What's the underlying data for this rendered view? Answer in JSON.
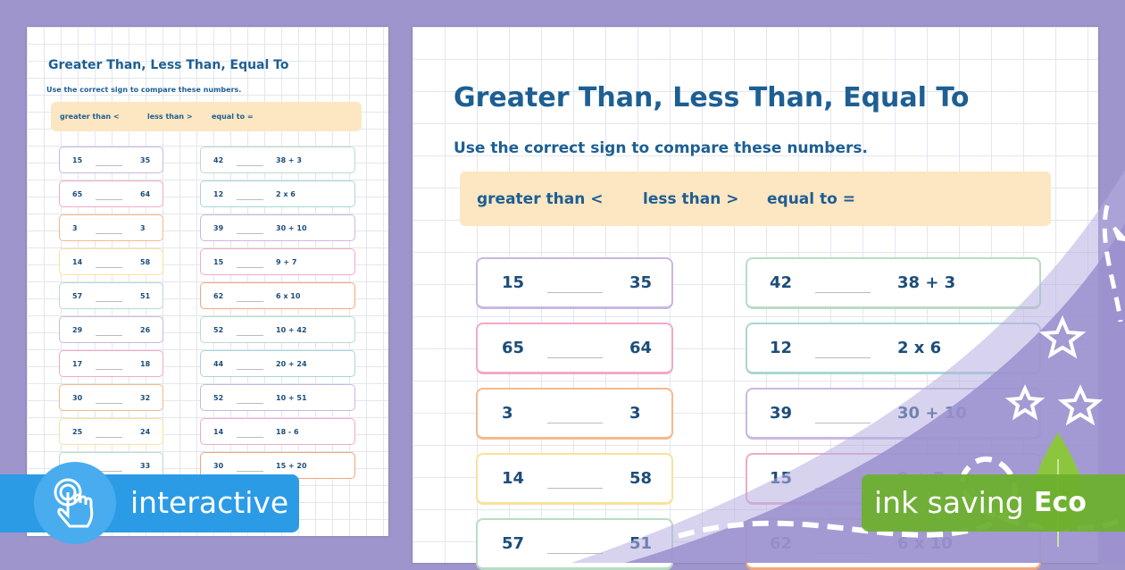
{
  "worksheet": {
    "title": "Greater Than, Less Than, Equal To",
    "instruction": "Use the correct sign to compare these numbers.",
    "key": [
      "greater than <",
      "less than >",
      "equal to ="
    ],
    "left_column": [
      [
        "15",
        "35"
      ],
      [
        "65",
        "64"
      ],
      [
        "3",
        "3"
      ],
      [
        "14",
        "58"
      ],
      [
        "57",
        "51"
      ],
      [
        "29",
        "26"
      ],
      [
        "17",
        "18"
      ],
      [
        "30",
        "32"
      ],
      [
        "25",
        "24"
      ],
      [
        "",
        "33"
      ]
    ],
    "right_column": [
      [
        "42",
        "38 + 3"
      ],
      [
        "12",
        "2 x 6"
      ],
      [
        "39",
        "30 + 10"
      ],
      [
        "15",
        "9 + 7"
      ],
      [
        "62",
        "6 x 10"
      ],
      [
        "52",
        "10 + 42"
      ],
      [
        "44",
        "20 + 24"
      ],
      [
        "52",
        "10 + 51"
      ],
      [
        "14",
        "18 - 6"
      ],
      [
        "30",
        "15 + 20"
      ]
    ],
    "left_colors": [
      "#c9b8e0",
      "#f2a9c9",
      "#f5b98e",
      "#f8e29a",
      "#b9dcc4"
    ],
    "right_colors": [
      "#b9dcc4",
      "#a9d6d6",
      "#c9b8e0",
      "#f2a9c9",
      "#f5a67a"
    ]
  },
  "badges": {
    "interactive": "interactive",
    "ink_saving": "ink saving",
    "eco": "Eco"
  },
  "colors": {
    "background": "#9d95cc",
    "title": "#1d5f93",
    "interactive": "#2b9be6",
    "eco": "#6db02e"
  }
}
